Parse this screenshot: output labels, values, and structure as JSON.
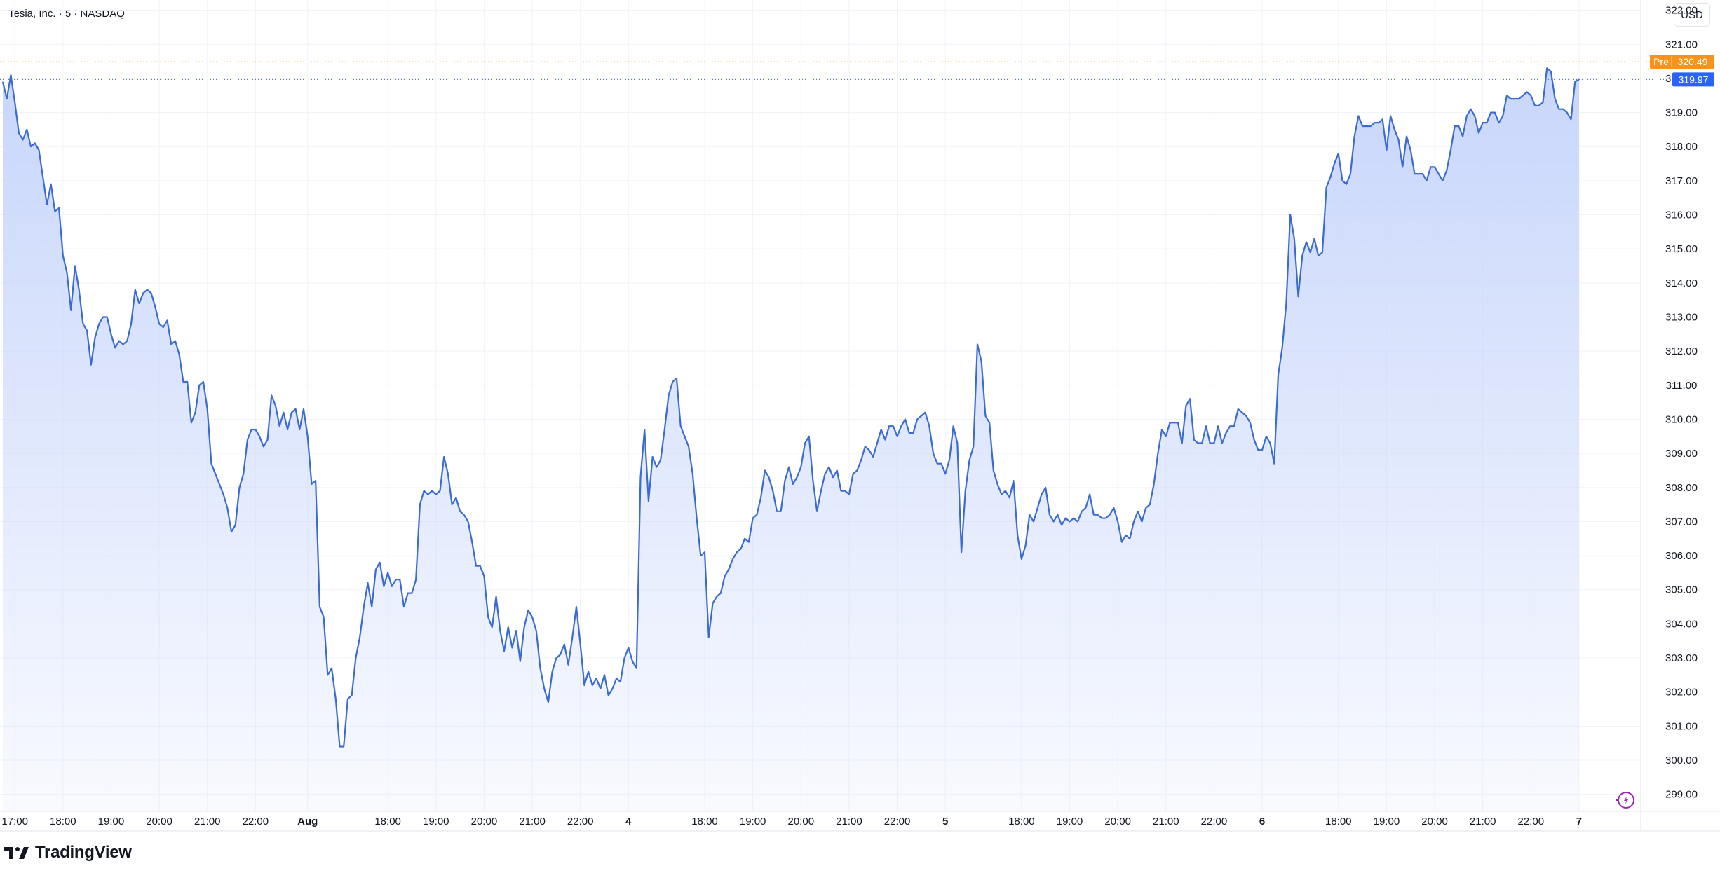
{
  "header": {
    "title": "Tesla, Inc. · 5 · NASDAQ",
    "currency_button": "USD"
  },
  "footer": {
    "brand": "TradingView"
  },
  "colors": {
    "line": "#2962ff",
    "stroke": "#3a6bd0",
    "fill_top": "#c8d6fb",
    "pre_badge": "#f7931a",
    "last_badge": "#2962ff"
  },
  "icons": [
    "tradingview-logo-icon",
    "lightning-circle-icon"
  ],
  "chart_data": {
    "type": "area",
    "ylim": [
      298.5,
      322.3
    ],
    "yticks": [
      299,
      300,
      301,
      302,
      303,
      304,
      305,
      306,
      307,
      308,
      309,
      310,
      311,
      312,
      313,
      314,
      315,
      316,
      317,
      318,
      319,
      320,
      321,
      322
    ],
    "xlabels": [
      {
        "label": "17:00",
        "i": 3
      },
      {
        "label": "18:00",
        "i": 15
      },
      {
        "label": "19:00",
        "i": 27
      },
      {
        "label": "20:00",
        "i": 39
      },
      {
        "label": "21:00",
        "i": 51
      },
      {
        "label": "22:00",
        "i": 63
      },
      {
        "label": "Aug",
        "i": 76
      },
      {
        "label": "18:00",
        "i": 96
      },
      {
        "label": "19:00",
        "i": 108
      },
      {
        "label": "20:00",
        "i": 120
      },
      {
        "label": "21:00",
        "i": 132
      },
      {
        "label": "22:00",
        "i": 144
      },
      {
        "label": "4",
        "i": 156
      },
      {
        "label": "18:00",
        "i": 175
      },
      {
        "label": "19:00",
        "i": 187
      },
      {
        "label": "20:00",
        "i": 199
      },
      {
        "label": "21:00",
        "i": 211
      },
      {
        "label": "22:00",
        "i": 223
      },
      {
        "label": "5",
        "i": 235
      },
      {
        "label": "18:00",
        "i": 254
      },
      {
        "label": "19:00",
        "i": 266
      },
      {
        "label": "20:00",
        "i": 278
      },
      {
        "label": "21:00",
        "i": 290
      },
      {
        "label": "22:00",
        "i": 302
      },
      {
        "label": "6",
        "i": 314
      },
      {
        "label": "18:00",
        "i": 333
      },
      {
        "label": "19:00",
        "i": 345
      },
      {
        "label": "20:00",
        "i": 357
      },
      {
        "label": "21:00",
        "i": 369
      },
      {
        "label": "22:00",
        "i": 381
      },
      {
        "label": "7",
        "i": 393
      }
    ],
    "grid": true,
    "legend": "none",
    "series": [
      {
        "values": [
          319.9,
          319.4,
          320.1,
          319.3,
          318.4,
          318.2,
          318.5,
          318.0,
          318.1,
          317.9,
          317.1,
          316.3,
          316.9,
          316.1,
          316.2,
          314.8,
          314.3,
          313.2,
          314.5,
          313.8,
          312.8,
          312.6,
          311.6,
          312.4,
          312.8,
          313.0,
          313.0,
          312.5,
          312.1,
          312.3,
          312.2,
          312.3,
          312.8,
          313.8,
          313.4,
          313.7,
          313.8,
          313.7,
          313.3,
          312.8,
          312.7,
          312.9,
          312.2,
          312.3,
          311.9,
          311.1,
          311.1,
          309.9,
          310.2,
          311.0,
          311.1,
          310.3,
          308.7,
          308.4,
          308.1,
          307.8,
          307.4,
          306.7,
          306.9,
          308.0,
          308.4,
          309.4,
          309.7,
          309.7,
          309.5,
          309.2,
          309.4,
          310.7,
          310.4,
          309.8,
          310.2,
          309.7,
          310.2,
          310.3,
          309.7,
          310.3,
          309.5,
          308.1,
          308.2,
          304.5,
          304.2,
          302.5,
          302.7,
          301.8,
          300.4,
          300.4,
          301.8,
          301.9,
          303.0,
          303.6,
          304.5,
          305.2,
          304.5,
          305.6,
          305.8,
          305.1,
          305.5,
          305.1,
          305.3,
          305.3,
          304.5,
          304.9,
          304.9,
          305.3,
          307.5,
          307.9,
          307.8,
          307.9,
          307.8,
          307.9,
          308.9,
          308.4,
          307.5,
          307.7,
          307.3,
          307.2,
          307.0,
          306.4,
          305.7,
          305.7,
          305.4,
          304.2,
          303.9,
          304.8,
          303.8,
          303.2,
          303.9,
          303.3,
          303.8,
          302.9,
          303.9,
          304.4,
          304.2,
          303.8,
          302.7,
          302.1,
          301.7,
          302.6,
          303.0,
          303.1,
          303.4,
          302.8,
          303.6,
          304.5,
          303.4,
          302.2,
          302.6,
          302.2,
          302.4,
          302.1,
          302.5,
          301.9,
          302.1,
          302.4,
          302.3,
          303.0,
          303.3,
          302.9,
          302.7,
          308.3,
          309.7,
          307.6,
          308.9,
          308.6,
          308.8,
          309.7,
          310.7,
          311.1,
          311.2,
          309.8,
          309.5,
          309.2,
          308.4,
          307.1,
          306.0,
          306.1,
          303.6,
          304.6,
          304.8,
          304.9,
          305.4,
          305.6,
          305.9,
          306.1,
          306.2,
          306.5,
          306.4,
          307.1,
          307.2,
          307.7,
          308.5,
          308.3,
          307.9,
          307.3,
          307.3,
          308.2,
          308.6,
          308.1,
          308.3,
          308.6,
          309.3,
          309.5,
          308.2,
          307.3,
          307.9,
          308.4,
          308.6,
          308.3,
          308.5,
          307.9,
          307.9,
          307.8,
          308.4,
          308.5,
          308.8,
          309.2,
          309.1,
          308.9,
          309.3,
          309.7,
          309.4,
          309.8,
          309.8,
          309.5,
          309.8,
          310.0,
          309.6,
          309.6,
          310.0,
          310.1,
          310.2,
          309.8,
          309.0,
          308.7,
          308.7,
          308.4,
          308.8,
          309.8,
          309.3,
          306.1,
          307.9,
          308.8,
          309.2,
          312.2,
          311.7,
          310.1,
          309.9,
          308.5,
          308.1,
          307.8,
          307.9,
          307.7,
          308.2,
          306.6,
          305.9,
          306.3,
          307.2,
          307.0,
          307.4,
          307.8,
          308.0,
          307.2,
          307.0,
          307.2,
          306.9,
          307.1,
          307.0,
          307.1,
          307.0,
          307.3,
          307.4,
          307.8,
          307.2,
          307.2,
          307.1,
          307.1,
          307.2,
          307.4,
          307.0,
          306.4,
          306.6,
          306.5,
          307.0,
          307.3,
          307.0,
          307.4,
          307.5,
          308.1,
          309.0,
          309.7,
          309.5,
          309.9,
          309.9,
          309.9,
          309.3,
          310.4,
          310.6,
          309.4,
          309.3,
          309.3,
          309.8,
          309.3,
          309.3,
          309.8,
          309.3,
          309.6,
          309.8,
          309.8,
          310.3,
          310.2,
          310.1,
          309.9,
          309.4,
          309.1,
          309.1,
          309.5,
          309.3,
          308.7,
          311.3,
          312.1,
          313.4,
          316.0,
          315.3,
          313.6,
          314.8,
          315.2,
          314.9,
          315.3,
          314.8,
          314.9,
          316.8,
          317.1,
          317.5,
          317.8,
          317.0,
          316.9,
          317.2,
          318.3,
          318.9,
          318.6,
          318.6,
          318.6,
          318.7,
          318.7,
          318.8,
          317.9,
          318.9,
          318.5,
          318.2,
          317.4,
          318.3,
          317.9,
          317.2,
          317.2,
          317.2,
          317.0,
          317.4,
          317.4,
          317.2,
          317.0,
          317.3,
          317.9,
          318.6,
          318.6,
          318.3,
          318.9,
          319.1,
          318.9,
          318.4,
          318.7,
          318.7,
          319.0,
          319.0,
          318.7,
          318.9,
          319.5,
          319.4,
          319.4,
          319.4,
          319.5,
          319.6,
          319.5,
          319.2,
          319.2,
          319.3,
          320.3,
          320.2,
          319.4,
          319.1,
          319.1,
          319.0,
          318.8,
          319.9,
          319.97
        ]
      }
    ],
    "last_price": {
      "label": "319.97",
      "value": 319.97
    },
    "pre_market": {
      "tag": "Pre",
      "label": "320.49",
      "value": 320.49
    }
  }
}
